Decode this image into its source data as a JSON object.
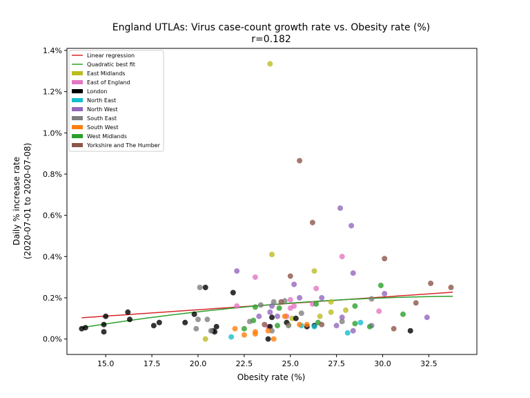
{
  "chart_data": {
    "type": "scatter",
    "title": "England UTLAs: Virus case-count growth rate vs. Obesity rate (%)",
    "subtitle": "r=0.182",
    "xlabel": "Obesity rate (%)",
    "ylabel_line1": "Daily % increase rate",
    "ylabel_line2": "(2020-07-01 to 2020-07-08)",
    "xlim": [
      12.9,
      35.1
    ],
    "ylim": [
      -0.075,
      1.41
    ],
    "xticks": [
      15.0,
      17.5,
      20.0,
      22.5,
      25.0,
      27.5,
      30.0,
      32.5
    ],
    "xtick_labels": [
      "15.0",
      "17.5",
      "20.0",
      "22.5",
      "25.0",
      "27.5",
      "30.0",
      "32.5"
    ],
    "yticks": [
      0.0,
      0.2,
      0.4,
      0.6,
      0.8,
      1.0,
      1.2,
      1.4
    ],
    "ytick_labels": [
      "0.0%",
      "0.2%",
      "0.4%",
      "0.6%",
      "0.8%",
      "1.0%",
      "1.2%",
      "1.4%"
    ],
    "legend_position": "top-left",
    "lines": [
      {
        "name": "Linear regression",
        "color": "#d62728",
        "kind": "linear",
        "x_range": [
          13.7,
          33.8
        ],
        "coef": [
          0.0185,
          0.00617
        ]
      },
      {
        "name": "Quadratic best fit",
        "color": "#2ca02c",
        "kind": "quadratic",
        "x_range": [
          13.7,
          33.8
        ],
        "coef": [
          -0.2045,
          0.02354,
          -0.000336
        ]
      }
    ],
    "series": [
      {
        "name": "East Midlands",
        "color": "#bcbd22",
        "points": [
          [
            23.9,
            1.335
          ],
          [
            24.0,
            0.41
          ],
          [
            26.3,
            0.33
          ],
          [
            26.6,
            0.11
          ],
          [
            27.2,
            0.18
          ],
          [
            27.2,
            0.13
          ],
          [
            28.0,
            0.14
          ],
          [
            24.9,
            0.07
          ],
          [
            20.4,
            0.0
          ],
          [
            25.1,
            0.1
          ]
        ]
      },
      {
        "name": "East of England",
        "color": "#e377c2",
        "points": [
          [
            23.1,
            0.3
          ],
          [
            22.1,
            0.16
          ],
          [
            27.8,
            0.4
          ],
          [
            26.4,
            0.245
          ],
          [
            25.0,
            0.19
          ],
          [
            25.2,
            0.16
          ],
          [
            24.8,
            0.11
          ],
          [
            29.8,
            0.135
          ],
          [
            23.8,
            0.06
          ],
          [
            26.2,
            0.17
          ],
          [
            25.0,
            0.15
          ]
        ]
      },
      {
        "name": "London",
        "color": "#000000",
        "points": [
          [
            13.7,
            0.05
          ],
          [
            13.9,
            0.055
          ],
          [
            14.9,
            0.07
          ],
          [
            14.9,
            0.035
          ],
          [
            15.0,
            0.11
          ],
          [
            16.2,
            0.13
          ],
          [
            16.3,
            0.095
          ],
          [
            17.6,
            0.065
          ],
          [
            17.9,
            0.08
          ],
          [
            19.3,
            0.08
          ],
          [
            19.8,
            0.12
          ],
          [
            20.4,
            0.25
          ],
          [
            20.8,
            0.04
          ],
          [
            20.9,
            0.035
          ],
          [
            21.0,
            0.06
          ],
          [
            21.9,
            0.225
          ],
          [
            23.8,
            0.0
          ],
          [
            23.9,
            0.06
          ],
          [
            24.0,
            0.105
          ],
          [
            24.8,
            0.08
          ],
          [
            25.3,
            0.1
          ],
          [
            25.9,
            0.06
          ],
          [
            26.3,
            0.065
          ],
          [
            31.5,
            0.04
          ]
        ]
      },
      {
        "name": "North East",
        "color": "#17becf",
        "points": [
          [
            21.8,
            0.01
          ],
          [
            26.3,
            0.06
          ],
          [
            28.1,
            0.03
          ],
          [
            28.8,
            0.08
          ],
          [
            25.6,
            0.065
          ]
        ]
      },
      {
        "name": "North West",
        "color": "#9467bd",
        "points": [
          [
            22.1,
            0.33
          ],
          [
            23.3,
            0.11
          ],
          [
            23.9,
            0.13
          ],
          [
            24.0,
            0.16
          ],
          [
            24.3,
            0.11
          ],
          [
            25.2,
            0.265
          ],
          [
            25.5,
            0.2
          ],
          [
            26.7,
            0.2
          ],
          [
            27.5,
            0.065
          ],
          [
            27.8,
            0.105
          ],
          [
            27.7,
            0.635
          ],
          [
            28.3,
            0.55
          ],
          [
            28.4,
            0.32
          ],
          [
            28.4,
            0.04
          ],
          [
            29.4,
            0.065
          ],
          [
            30.1,
            0.22
          ],
          [
            32.4,
            0.105
          ]
        ]
      },
      {
        "name": "South East",
        "color": "#7f7f7f",
        "points": [
          [
            20.1,
            0.25
          ],
          [
            20.0,
            0.095
          ],
          [
            20.5,
            0.095
          ],
          [
            19.9,
            0.05
          ],
          [
            20.7,
            0.04
          ],
          [
            22.8,
            0.085
          ],
          [
            23.4,
            0.165
          ],
          [
            24.1,
            0.18
          ],
          [
            24.7,
            0.185
          ],
          [
            25.6,
            0.125
          ],
          [
            24.0,
            0.04
          ],
          [
            24.9,
            0.065
          ],
          [
            27.8,
            0.085
          ],
          [
            29.4,
            0.195
          ]
        ]
      },
      {
        "name": "South West",
        "color": "#ff7f0e",
        "points": [
          [
            22.0,
            0.05
          ],
          [
            22.5,
            0.02
          ],
          [
            23.1,
            0.035
          ],
          [
            23.1,
            0.025
          ],
          [
            23.8,
            0.04
          ],
          [
            24.1,
            0.0
          ],
          [
            25.5,
            0.07
          ],
          [
            25.9,
            0.07
          ],
          [
            24.7,
            0.11
          ]
        ]
      },
      {
        "name": "West Midlands",
        "color": "#2ca02c",
        "points": [
          [
            22.5,
            0.05
          ],
          [
            23.0,
            0.09
          ],
          [
            23.1,
            0.155
          ],
          [
            24.3,
            0.065
          ],
          [
            24.4,
            0.15
          ],
          [
            26.4,
            0.17
          ],
          [
            26.5,
            0.08
          ],
          [
            28.5,
            0.16
          ],
          [
            28.5,
            0.075
          ],
          [
            29.9,
            0.26
          ],
          [
            31.1,
            0.12
          ],
          [
            29.3,
            0.06
          ]
        ]
      },
      {
        "name": "Yorkshire and The Humber",
        "color": "#8c564b",
        "points": [
          [
            25.5,
            0.865
          ],
          [
            26.2,
            0.565
          ],
          [
            25.0,
            0.305
          ],
          [
            30.1,
            0.39
          ],
          [
            32.6,
            0.27
          ],
          [
            33.7,
            0.25
          ],
          [
            24.5,
            0.18
          ],
          [
            31.8,
            0.175
          ],
          [
            30.6,
            0.05
          ],
          [
            23.6,
            0.07
          ],
          [
            26.7,
            0.07
          ]
        ]
      }
    ]
  }
}
